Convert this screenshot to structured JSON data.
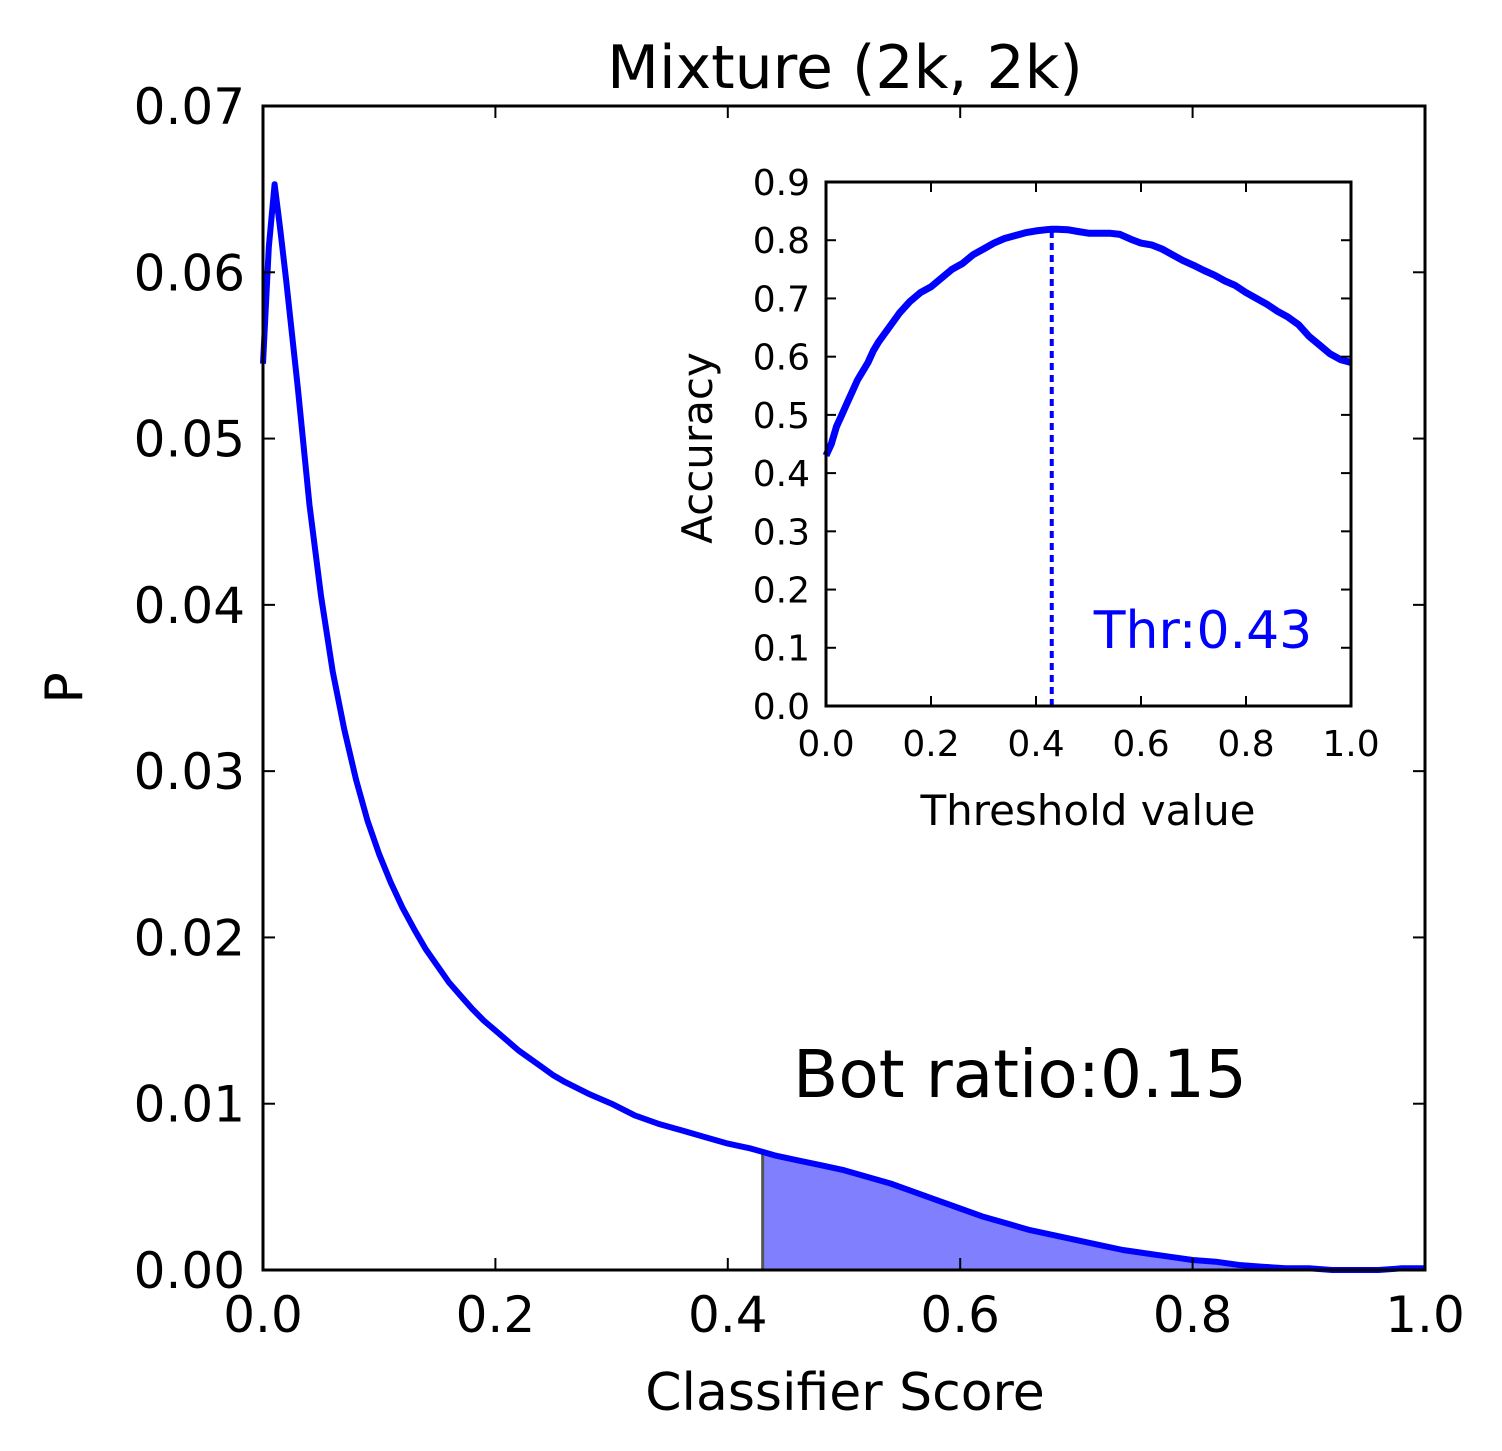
{
  "chart_data": [
    {
      "type": "line",
      "title": "Mixture (2k, 2k)",
      "xlabel": "Classifier Score",
      "ylabel": "P",
      "xlim": [
        0.0,
        1.0
      ],
      "ylim": [
        0.0,
        0.07
      ],
      "xticks": [
        "0.0",
        "0.2",
        "0.4",
        "0.6",
        "0.8",
        "1.0"
      ],
      "yticks": [
        "0.00",
        "0.01",
        "0.02",
        "0.03",
        "0.04",
        "0.05",
        "0.06",
        "0.07"
      ],
      "grid": false,
      "series": [
        {
          "color": "#0000ff",
          "x": [
            0.0,
            0.005,
            0.01,
            0.015,
            0.02,
            0.03,
            0.04,
            0.05,
            0.06,
            0.07,
            0.08,
            0.09,
            0.1,
            0.11,
            0.12,
            0.13,
            0.14,
            0.15,
            0.16,
            0.17,
            0.18,
            0.19,
            0.2,
            0.22,
            0.24,
            0.25,
            0.26,
            0.28,
            0.3,
            0.32,
            0.34,
            0.36,
            0.38,
            0.4,
            0.42,
            0.43,
            0.44,
            0.46,
            0.48,
            0.5,
            0.52,
            0.54,
            0.56,
            0.58,
            0.6,
            0.62,
            0.64,
            0.66,
            0.68,
            0.7,
            0.72,
            0.74,
            0.76,
            0.78,
            0.8,
            0.82,
            0.84,
            0.86,
            0.88,
            0.9,
            0.92,
            0.94,
            0.96,
            0.98,
            1.0
          ],
          "y": [
            0.0545,
            0.0615,
            0.0653,
            0.0625,
            0.0595,
            0.053,
            0.046,
            0.0405,
            0.036,
            0.0325,
            0.0295,
            0.027,
            0.025,
            0.0233,
            0.0218,
            0.0205,
            0.0193,
            0.0183,
            0.0173,
            0.0165,
            0.0157,
            0.015,
            0.0144,
            0.0132,
            0.0122,
            0.0117,
            0.0113,
            0.0106,
            0.01,
            0.0093,
            0.0088,
            0.0084,
            0.008,
            0.0076,
            0.0073,
            0.0071,
            0.0069,
            0.0066,
            0.0063,
            0.006,
            0.0056,
            0.0052,
            0.0047,
            0.0042,
            0.0037,
            0.0032,
            0.0028,
            0.0024,
            0.0021,
            0.0018,
            0.0015,
            0.0012,
            0.001,
            0.0008,
            0.0006,
            0.0005,
            0.0003,
            0.0002,
            0.0001,
            0.0001,
            0.0,
            0.0,
            0.0,
            0.0001,
            0.0001
          ]
        }
      ],
      "shaded_region": {
        "from_x": 0.43,
        "to_x": 1.0,
        "color": "#8080ff"
      },
      "annotations": [
        {
          "text": "Bot ratio:0.15",
          "color": "#000000"
        }
      ]
    },
    {
      "type": "line",
      "title": "",
      "xlabel": "Threshold value",
      "ylabel": "Accuracy",
      "xlim": [
        0.0,
        1.0
      ],
      "ylim": [
        0.0,
        0.9
      ],
      "xticks": [
        "0.0",
        "0.2",
        "0.4",
        "0.6",
        "0.8",
        "1.0"
      ],
      "yticks": [
        "0.0",
        "0.1",
        "0.2",
        "0.3",
        "0.4",
        "0.5",
        "0.6",
        "0.7",
        "0.8",
        "0.9"
      ],
      "grid": false,
      "series": [
        {
          "color": "#0000ff",
          "x": [
            0.0,
            0.01,
            0.02,
            0.03,
            0.04,
            0.05,
            0.06,
            0.07,
            0.08,
            0.09,
            0.1,
            0.12,
            0.14,
            0.16,
            0.18,
            0.2,
            0.22,
            0.24,
            0.26,
            0.28,
            0.3,
            0.32,
            0.34,
            0.36,
            0.38,
            0.4,
            0.42,
            0.43,
            0.44,
            0.46,
            0.48,
            0.5,
            0.52,
            0.54,
            0.56,
            0.58,
            0.6,
            0.62,
            0.64,
            0.66,
            0.68,
            0.7,
            0.72,
            0.74,
            0.76,
            0.78,
            0.8,
            0.82,
            0.84,
            0.86,
            0.88,
            0.9,
            0.92,
            0.94,
            0.96,
            0.98,
            1.0
          ],
          "y": [
            0.43,
            0.45,
            0.48,
            0.5,
            0.52,
            0.54,
            0.56,
            0.575,
            0.59,
            0.61,
            0.625,
            0.65,
            0.675,
            0.695,
            0.71,
            0.72,
            0.735,
            0.75,
            0.76,
            0.775,
            0.785,
            0.795,
            0.803,
            0.808,
            0.813,
            0.816,
            0.818,
            0.819,
            0.819,
            0.818,
            0.815,
            0.812,
            0.812,
            0.812,
            0.81,
            0.802,
            0.795,
            0.792,
            0.785,
            0.775,
            0.765,
            0.757,
            0.748,
            0.74,
            0.73,
            0.722,
            0.71,
            0.7,
            0.69,
            0.678,
            0.668,
            0.655,
            0.635,
            0.62,
            0.605,
            0.595,
            0.59
          ]
        }
      ],
      "threshold": {
        "x": 0.43,
        "color": "#0000ff",
        "style": "dotted"
      },
      "annotations": [
        {
          "text": "Thr:0.43",
          "color": "#0000ff"
        }
      ]
    }
  ]
}
